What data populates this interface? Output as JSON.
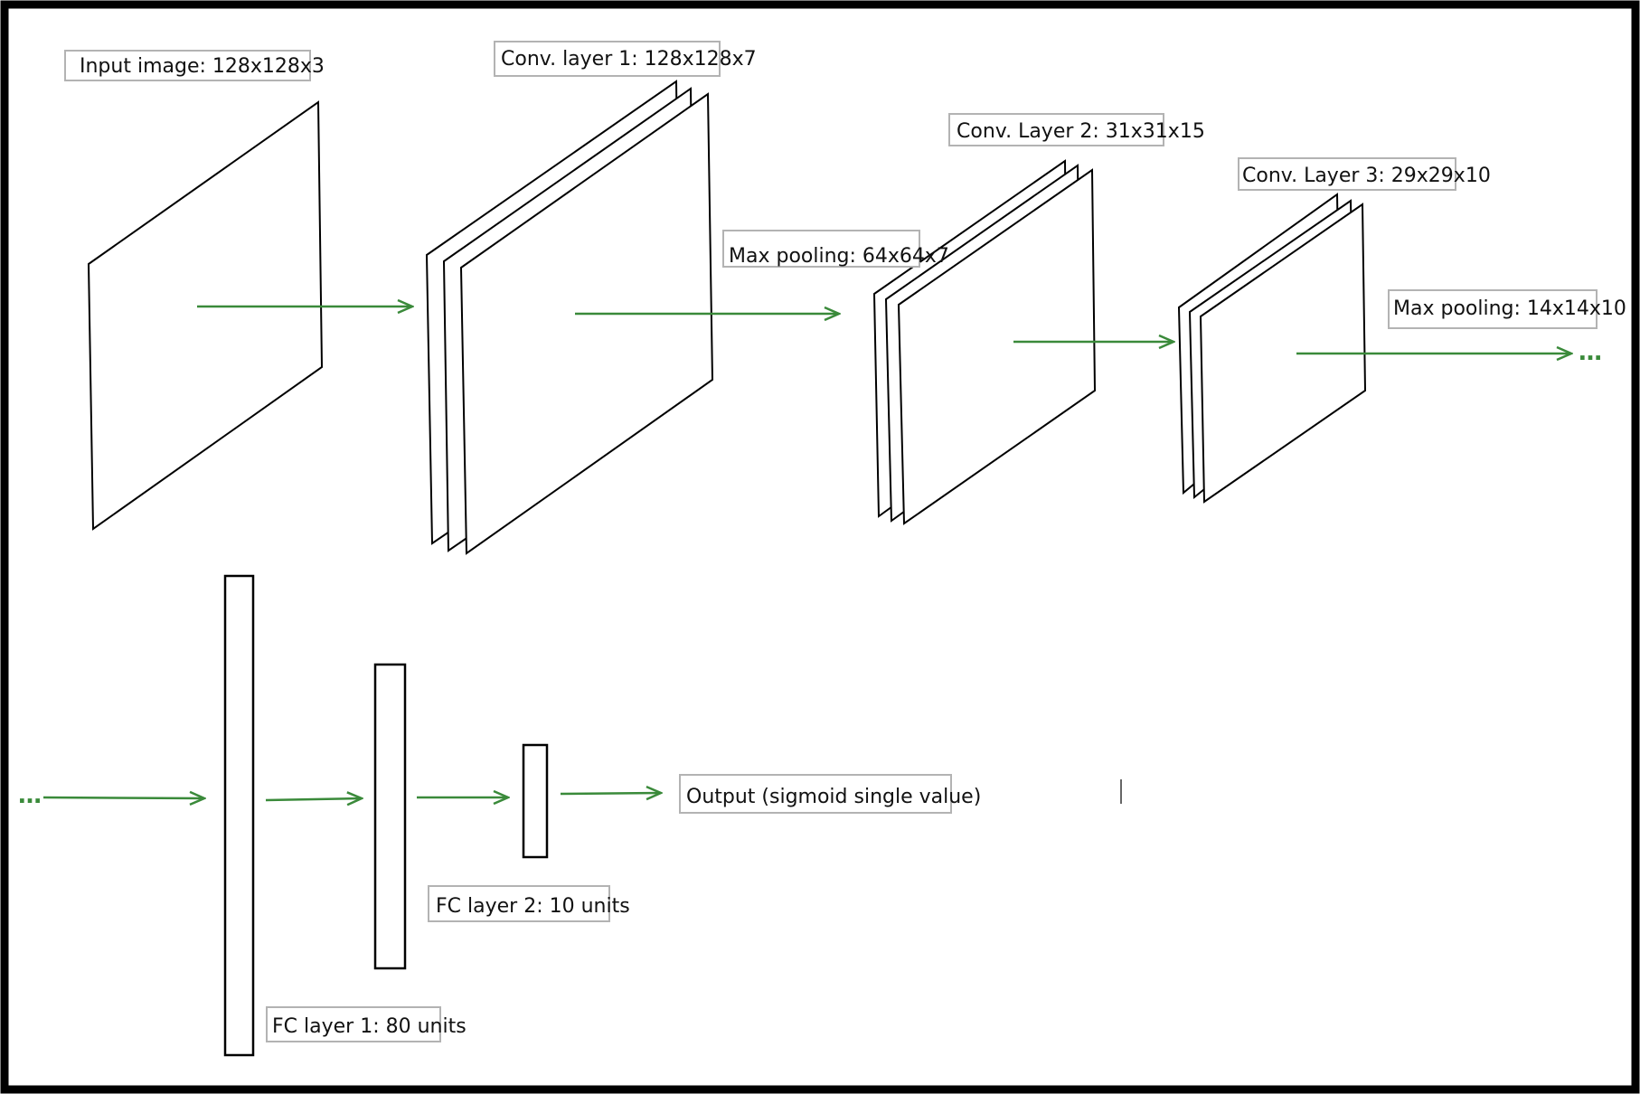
{
  "colors": {
    "arrow": "#3a8a3a",
    "frame": "#000000",
    "background": "#ffffff"
  },
  "labels": {
    "input_image": "Input image: 128x128x3",
    "conv1": "Conv. layer 1: 128x128x7",
    "pool1": "Max pooling: 64x64x7",
    "conv2": "Conv. Layer 2: 31x31x15",
    "conv3": "Conv. Layer 3: 29x29x10",
    "pool2": "Max pooling: 14x14x10",
    "fc1": "FC layer 1: 80 units",
    "fc2": "FC layer 2: 10 units",
    "output": "Output (sigmoid single value)"
  },
  "continuation": {
    "top_right": "…",
    "bottom_left": "…"
  }
}
